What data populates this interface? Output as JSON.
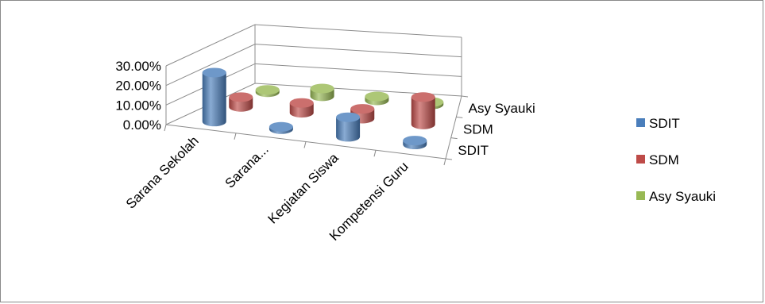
{
  "chart_data": {
    "type": "bar",
    "subtype": "3d-cylinder",
    "categories": [
      "Sarana Sekolah",
      "Sarana...",
      "Kegiatan Siswa",
      "Kompetensi Guru"
    ],
    "series": [
      {
        "name": "SDIT",
        "values": [
          0.25,
          0.01,
          0.1,
          0.02
        ],
        "color": "#4a7ebb"
      },
      {
        "name": "SDM",
        "values": [
          0.05,
          0.05,
          0.05,
          0.14
        ],
        "color": "#be4b48"
      },
      {
        "name": "Asy Syauki",
        "values": [
          0.01,
          0.04,
          0.02,
          0.0
        ],
        "color": "#98b954"
      }
    ],
    "y_ticks": [
      "0.00%",
      "10.00%",
      "20.00%",
      "30.00%"
    ],
    "y_tick_values": [
      0,
      0.1,
      0.2,
      0.3
    ],
    "depth_labels": [
      "SDIT",
      "SDM",
      "Asy Syauki"
    ],
    "ylim": [
      0,
      0.3
    ],
    "grid": true,
    "legend_position": "right"
  }
}
